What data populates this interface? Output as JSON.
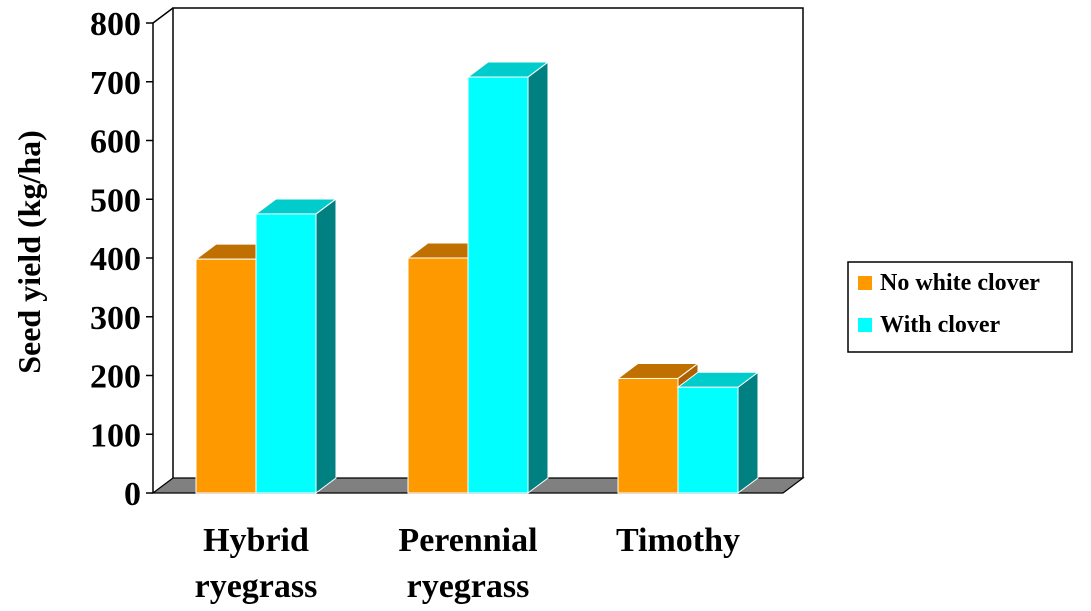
{
  "chart_data": {
    "type": "bar",
    "title": "",
    "xlabel": "",
    "ylabel": "Seed yield (kg/ha)",
    "categories": [
      [
        "Hybrid",
        "ryegrass"
      ],
      [
        "Perennial",
        "ryegrass"
      ],
      [
        "Timothy"
      ]
    ],
    "series": [
      {
        "name": "No white clover",
        "values": [
          398,
          400,
          195
        ],
        "color": "#FF9900",
        "top_color": "#C07000",
        "side_color": "#B06000"
      },
      {
        "name": "With clover",
        "values": [
          475,
          708,
          180
        ],
        "color": "#00FFFF",
        "top_color": "#00CCCC",
        "side_color": "#008080"
      }
    ],
    "ylim": [
      0,
      800
    ],
    "yticks": [
      0,
      100,
      200,
      300,
      400,
      500,
      600,
      700,
      800
    ],
    "grid": false,
    "legend_position": "right",
    "style": "3d-bar",
    "floor_color": "#808080"
  }
}
